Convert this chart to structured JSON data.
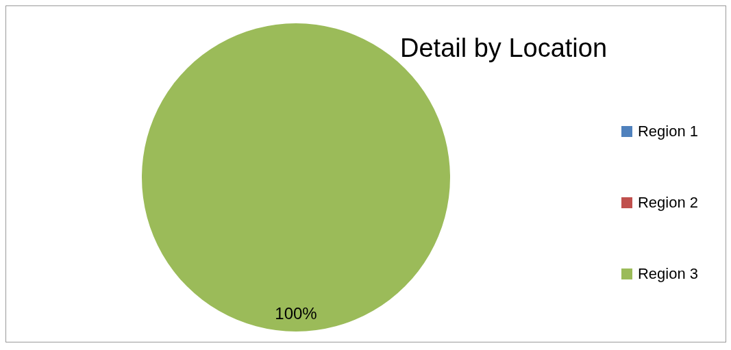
{
  "chart_data": {
    "type": "pie",
    "title": "Detail by Location",
    "categories": [
      "Region 1",
      "Region 2",
      "Region 3"
    ],
    "values": [
      0,
      0,
      100
    ],
    "colors": [
      "#4f81bd",
      "#c0504d",
      "#9bbb59"
    ],
    "value_labels": [
      null,
      null,
      "100%"
    ],
    "legend": "right"
  }
}
